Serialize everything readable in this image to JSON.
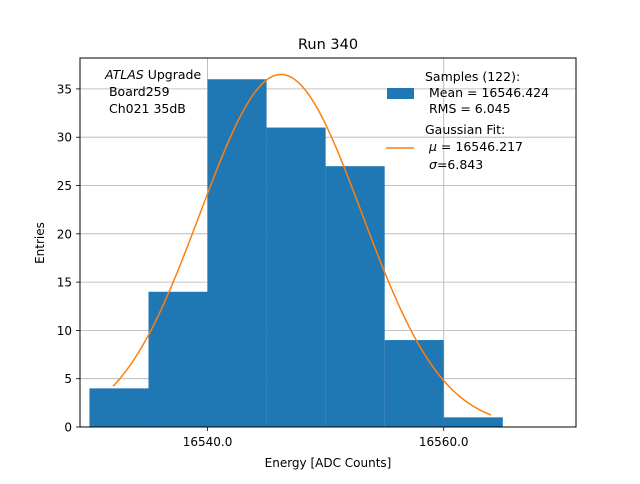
{
  "chart_data": {
    "type": "bar",
    "title": "Run 340",
    "xlabel": "Energy [ADC Counts]",
    "ylabel": "Entries",
    "xlim": [
      16529.2,
      16571.2
    ],
    "ylim": [
      0,
      38.2
    ],
    "grid": true,
    "x_ticks": [
      16540.0,
      16560.0
    ],
    "x_tick_labels": [
      "16540.0",
      "16560.0"
    ],
    "y_ticks": [
      0,
      5,
      10,
      15,
      20,
      25,
      30,
      35
    ],
    "y_tick_labels": [
      "0",
      "5",
      "10",
      "15",
      "20",
      "25",
      "30",
      "35"
    ],
    "histogram": {
      "name": "Samples (122):",
      "color": "#1f77b4",
      "bins": [
        {
          "x0": 16530.0,
          "x1": 16535.0,
          "count": 4
        },
        {
          "x0": 16535.0,
          "x1": 16540.0,
          "count": 14
        },
        {
          "x0": 16540.0,
          "x1": 16545.0,
          "count": 36
        },
        {
          "x0": 16545.0,
          "x1": 16550.0,
          "count": 31
        },
        {
          "x0": 16550.0,
          "x1": 16555.0,
          "count": 27
        },
        {
          "x0": 16555.0,
          "x1": 16560.0,
          "count": 9
        },
        {
          "x0": 16560.0,
          "x1": 16565.0,
          "count": 1
        },
        {
          "x0": 16565.0,
          "x1": 16570.0,
          "count": 0
        }
      ]
    },
    "fit": {
      "name": "Gaussian Fit:",
      "color": "#ff7f0e",
      "mu": 16546.217,
      "sigma": 6.843,
      "amplitude": 36.5,
      "x_range": [
        16532.0,
        16564.0
      ]
    },
    "annotation": {
      "italic": "ATLAS",
      "text1": " Upgrade",
      "line2": " Board259",
      "line3": " Ch021 35dB"
    },
    "legend": {
      "position": "top-right",
      "hist_line1": "Samples (122):",
      "hist_line2": " Mean = 16546.424",
      "hist_line3": " RMS = 6.045",
      "fit_line1": "Gaussian Fit:",
      "fit_mu": " = 16546.217",
      "fit_sigma": "=6.843",
      "mu_symbol": "μ",
      "sigma_symbol": "σ"
    }
  }
}
